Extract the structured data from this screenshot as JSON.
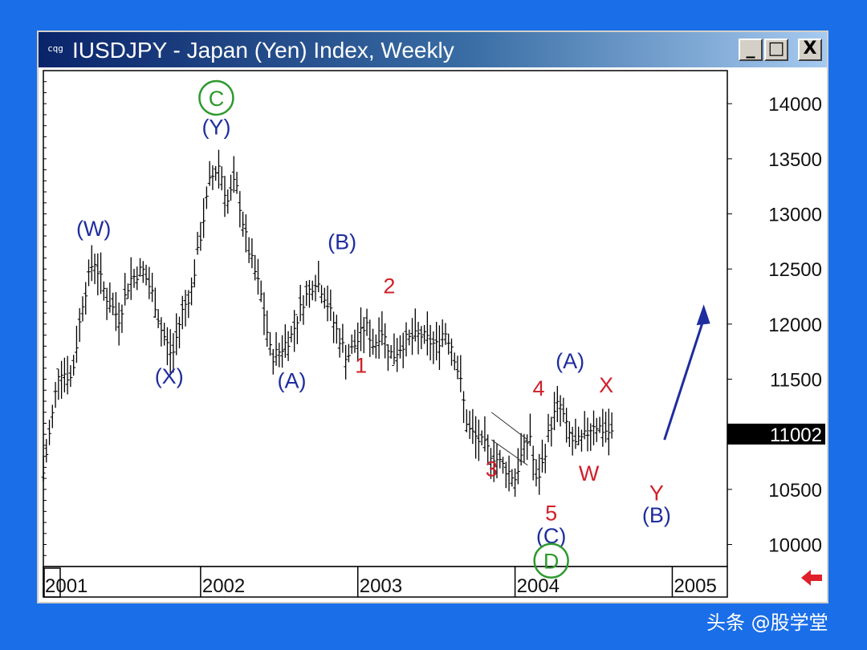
{
  "window": {
    "title": "IUSDJPY - Japan (Yen) Index, Weekly",
    "icon_name": "chart-app-icon",
    "minimize_glyph": "_",
    "maximize_glyph": "□",
    "close_glyph": "X"
  },
  "watermark": "头条 @股学堂",
  "chart_data": {
    "type": "bar",
    "subtype": "ohlc-weekly",
    "ylim": [
      9800,
      14300
    ],
    "yticks": [
      10000,
      10500,
      11000,
      11500,
      12000,
      12500,
      13000,
      13500,
      14000
    ],
    "ytick_labels": [
      "10000",
      "10500",
      "",
      "11500",
      "12000",
      "12500",
      "13000",
      "13500",
      "14000"
    ],
    "xlim": [
      2001.0,
      2005.35
    ],
    "xticks": [
      2001,
      2002,
      2003,
      2004,
      2005
    ],
    "xtick_labels": [
      "2001",
      "2002",
      "2003",
      "2004",
      "2005"
    ],
    "last_price": "11002",
    "grid": false,
    "price_path": [
      [
        2001.0,
        10650
      ],
      [
        2001.05,
        11100
      ],
      [
        2001.1,
        11600
      ],
      [
        2001.18,
        11500
      ],
      [
        2001.25,
        12200
      ],
      [
        2001.32,
        12600
      ],
      [
        2001.4,
        12250
      ],
      [
        2001.48,
        12050
      ],
      [
        2001.55,
        12400
      ],
      [
        2001.63,
        12500
      ],
      [
        2001.7,
        12250
      ],
      [
        2001.75,
        11950
      ],
      [
        2001.82,
        11700
      ],
      [
        2001.88,
        12100
      ],
      [
        2001.94,
        12300
      ],
      [
        2002.0,
        12800
      ],
      [
        2002.06,
        13300
      ],
      [
        2002.12,
        13450
      ],
      [
        2002.17,
        13100
      ],
      [
        2002.22,
        13300
      ],
      [
        2002.3,
        12700
      ],
      [
        2002.38,
        12300
      ],
      [
        2002.45,
        11700
      ],
      [
        2002.5,
        11750
      ],
      [
        2002.58,
        11900
      ],
      [
        2002.65,
        12200
      ],
      [
        2002.73,
        12400
      ],
      [
        2002.78,
        12300
      ],
      [
        2002.85,
        12000
      ],
      [
        2002.93,
        11700
      ],
      [
        2003.0,
        11850
      ],
      [
        2003.05,
        12000
      ],
      [
        2003.1,
        11800
      ],
      [
        2003.15,
        11950
      ],
      [
        2003.22,
        11700
      ],
      [
        2003.3,
        11850
      ],
      [
        2003.4,
        11900
      ],
      [
        2003.5,
        11800
      ],
      [
        2003.55,
        11950
      ],
      [
        2003.6,
        11800
      ],
      [
        2003.65,
        11500
      ],
      [
        2003.7,
        11050
      ],
      [
        2003.8,
        10900
      ],
      [
        2003.9,
        10750
      ],
      [
        2004.0,
        10600
      ],
      [
        2004.05,
        10850
      ],
      [
        2004.1,
        11000
      ],
      [
        2004.13,
        10550
      ],
      [
        2004.17,
        10700
      ],
      [
        2004.22,
        11050
      ],
      [
        2004.28,
        11300
      ],
      [
        2004.33,
        11050
      ],
      [
        2004.38,
        10900
      ],
      [
        2004.43,
        10950
      ],
      [
        2004.5,
        11100
      ],
      [
        2004.55,
        11050
      ],
      [
        2004.62,
        11002
      ]
    ],
    "channel": [
      [
        2003.85,
        10950
      ],
      [
        2004.08,
        10720
      ],
      [
        2003.85,
        11200
      ],
      [
        2004.08,
        10950
      ]
    ],
    "projection_path": [
      [
        2004.95,
        10950
      ],
      [
        2005.2,
        12150
      ]
    ],
    "annotations": [
      {
        "text": "C",
        "x": 2002.1,
        "y": 13980,
        "color": "#2e9a2e",
        "circled": true
      },
      {
        "text": "(Y)",
        "x": 2002.1,
        "y": 13720,
        "color": "#1f2d9e"
      },
      {
        "text": "(W)",
        "x": 2001.32,
        "y": 12800,
        "color": "#1f2d9e"
      },
      {
        "text": "(X)",
        "x": 2001.8,
        "y": 11460,
        "color": "#1f2d9e"
      },
      {
        "text": "(A)",
        "x": 2002.58,
        "y": 11420,
        "color": "#1f2d9e"
      },
      {
        "text": "(B)",
        "x": 2002.9,
        "y": 12680,
        "color": "#1f2d9e"
      },
      {
        "text": "1",
        "x": 2003.02,
        "y": 11560,
        "color": "#d0202a"
      },
      {
        "text": "2",
        "x": 2003.2,
        "y": 12280,
        "color": "#d0202a"
      },
      {
        "text": "3",
        "x": 2003.85,
        "y": 10620,
        "color": "#d0202a"
      },
      {
        "text": "4",
        "x": 2004.15,
        "y": 11350,
        "color": "#d0202a"
      },
      {
        "text": "5",
        "x": 2004.23,
        "y": 10220,
        "color": "#d0202a"
      },
      {
        "text": "(C)",
        "x": 2004.23,
        "y": 10010,
        "color": "#1f2d9e"
      },
      {
        "text": "D",
        "x": 2004.23,
        "y": 9780,
        "color": "#2e9a2e",
        "circled": true
      },
      {
        "text": "(A)",
        "x": 2004.35,
        "y": 11600,
        "color": "#1f2d9e"
      },
      {
        "text": "X",
        "x": 2004.58,
        "y": 11380,
        "color": "#d0202a"
      },
      {
        "text": "W",
        "x": 2004.47,
        "y": 10580,
        "color": "#d0202a"
      },
      {
        "text": "Y",
        "x": 2004.9,
        "y": 10400,
        "color": "#d0202a"
      },
      {
        "text": "(B)",
        "x": 2004.9,
        "y": 10200,
        "color": "#1f2d9e"
      }
    ]
  }
}
